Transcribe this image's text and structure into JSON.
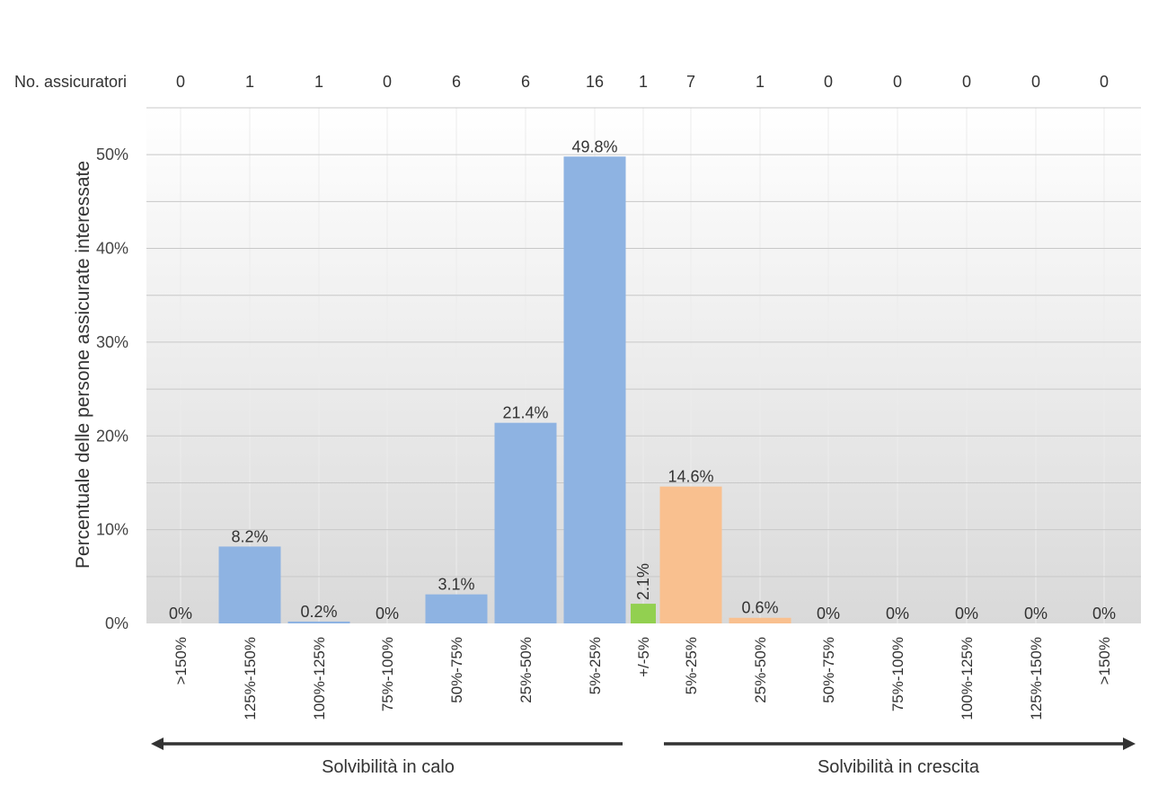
{
  "chart_data": {
    "type": "bar",
    "title": "",
    "ylabel": "Percentuale delle persone assicurate interessate",
    "ylim": [
      0,
      55
    ],
    "yticks": [
      0,
      10,
      20,
      30,
      40,
      50
    ],
    "ytick_labels": [
      "0%",
      "10%",
      "20%",
      "30%",
      "40%",
      "50%"
    ],
    "grid": true,
    "top_row_label": "No. assicuratori",
    "categories": [
      ">150%",
      "125%-150%",
      "100%-125%",
      "75%-100%",
      "50%-75%",
      "25%-50%",
      "5%-25%",
      "+/-5%",
      "5%-25%",
      "25%-50%",
      "50%-75%",
      "75%-100%",
      "100%-125%",
      "125%-150%",
      ">150%"
    ],
    "values": [
      0,
      8.2,
      0.2,
      0,
      3.1,
      21.4,
      49.8,
      2.1,
      14.6,
      0.6,
      0,
      0,
      0,
      0,
      0
    ],
    "value_labels": [
      "0%",
      "8.2%",
      "0.2%",
      "0%",
      "3.1%",
      "21.4%",
      "49.8%",
      "2.1%",
      "14.6%",
      "0.6%",
      "0%",
      "0%",
      "0%",
      "0%",
      "0%"
    ],
    "insurer_counts": [
      "0",
      "1",
      "1",
      "0",
      "6",
      "6",
      "16",
      "1",
      "7",
      "1",
      "0",
      "0",
      "0",
      "0",
      "0"
    ],
    "groups": [
      "decrease",
      "decrease",
      "decrease",
      "decrease",
      "decrease",
      "decrease",
      "decrease",
      "neutral",
      "increase",
      "increase",
      "increase",
      "increase",
      "increase",
      "increase",
      "increase"
    ],
    "colors": {
      "decrease": "#8eb3e2",
      "neutral": "#92d050",
      "increase": "#f9c08f"
    },
    "arrow_left_label": "Solvibilità in calo",
    "arrow_right_label": "Solvibilità in crescita"
  }
}
